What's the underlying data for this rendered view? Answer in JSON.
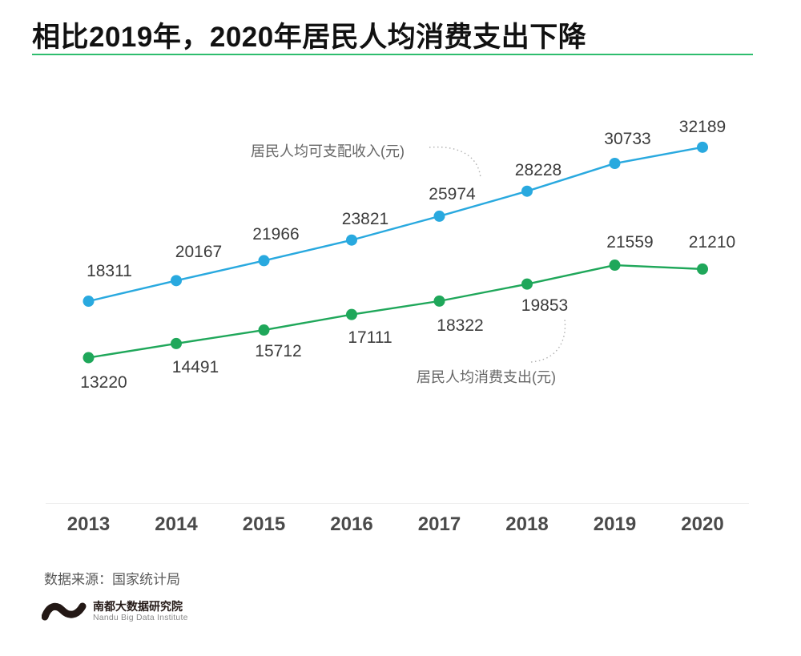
{
  "page": {
    "title": "相比2019年，2020年居民人均消费支出下降",
    "source": "数据来源：国家统计局",
    "logo": {
      "name_cn": "南都大数据研究院",
      "name_en": "Nandu Big Data Institute"
    }
  },
  "colors": {
    "income_line": "#29a9df",
    "expense_line": "#1fa75a",
    "title_underline": "#2ebd6e",
    "leader_dots": "#b0b0b0"
  },
  "chart_data": {
    "type": "line",
    "categories": [
      "2013",
      "2014",
      "2015",
      "2016",
      "2017",
      "2018",
      "2019",
      "2020"
    ],
    "series": [
      {
        "name": "居民人均可支配收入(元)",
        "color": "#29a9df",
        "values": [
          18311,
          20167,
          21966,
          23821,
          25974,
          28228,
          30733,
          32189
        ]
      },
      {
        "name": "居民人均消费支出(元)",
        "color": "#1fa75a",
        "values": [
          13220,
          14491,
          15712,
          17111,
          18322,
          19853,
          21559,
          21210
        ]
      }
    ],
    "title": "相比2019年，2020年居民人均消费支出下降",
    "xlabel": "",
    "ylabel": "",
    "ylim": [
      12000,
      33500
    ],
    "grid": false,
    "legend_position": "inline-annotations-with-dotted-leaders",
    "data_labels_visible": true
  }
}
